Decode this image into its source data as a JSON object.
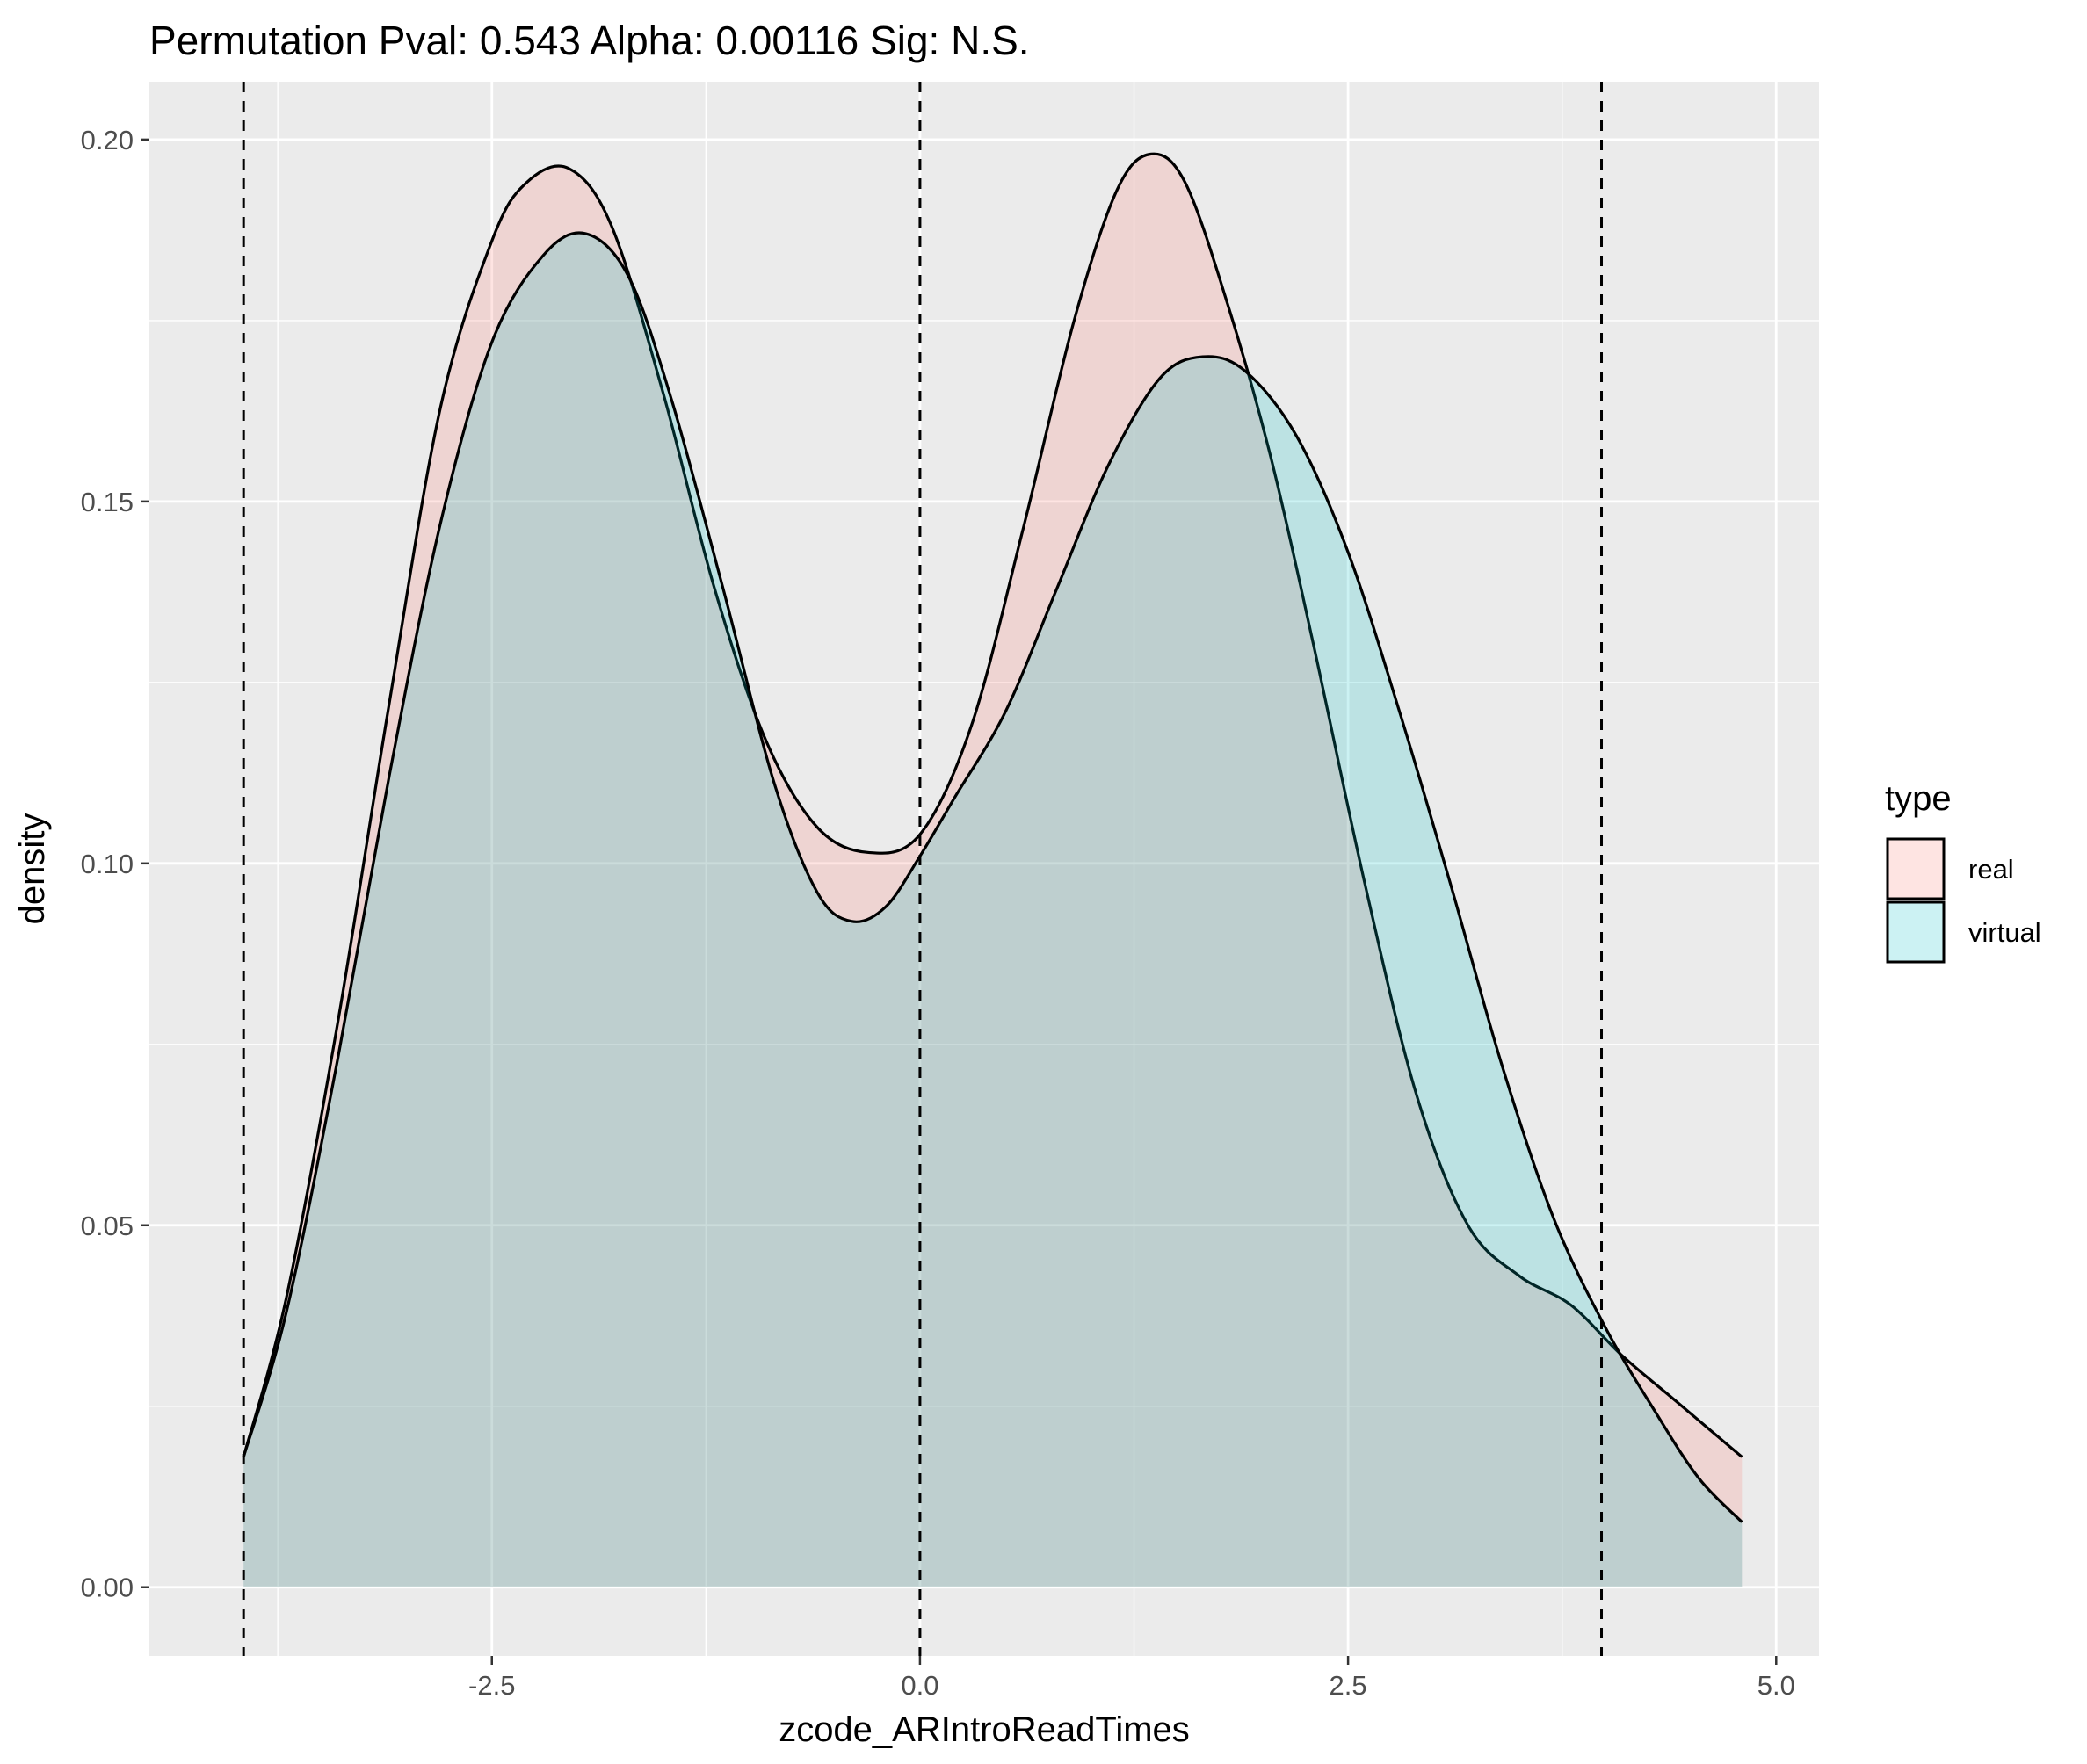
{
  "chart_data": {
    "type": "area",
    "title": "Permutation Pval: 0.543 Alpha: 0.00116 Sig: N.S.",
    "xlabel": "zcode_ARIntroReadTimes",
    "ylabel": "density",
    "xlim": [
      -4.5,
      5.25
    ],
    "ylim": [
      -0.0095,
      0.208
    ],
    "x_ticks": [
      -2.5,
      0.0,
      2.5,
      5.0
    ],
    "x_tick_labels": [
      "-2.5",
      "0.0",
      "2.5",
      "5.0"
    ],
    "y_ticks": [
      0.0,
      0.05,
      0.1,
      0.15,
      0.2
    ],
    "y_tick_labels": [
      "0.00",
      "0.05",
      "0.10",
      "0.15",
      "0.20"
    ],
    "grid": true,
    "legend": {
      "title": "type",
      "position": "right"
    },
    "vlines": [
      -3.95,
      0.0,
      3.98
    ],
    "series": [
      {
        "name": "real",
        "color": "#F8766D",
        "points": [
          [
            -3.95,
            0.018
          ],
          [
            -3.7,
            0.04
          ],
          [
            -3.4,
            0.078
          ],
          [
            -3.1,
            0.122
          ],
          [
            -2.8,
            0.163
          ],
          [
            -2.5,
            0.186
          ],
          [
            -2.3,
            0.194
          ],
          [
            -2.05,
            0.196
          ],
          [
            -1.8,
            0.188
          ],
          [
            -1.5,
            0.165
          ],
          [
            -1.2,
            0.138
          ],
          [
            -0.9,
            0.117
          ],
          [
            -0.6,
            0.105
          ],
          [
            -0.3,
            0.1015
          ],
          [
            0.0,
            0.104
          ],
          [
            0.3,
            0.119
          ],
          [
            0.6,
            0.146
          ],
          [
            0.9,
            0.175
          ],
          [
            1.15,
            0.193
          ],
          [
            1.35,
            0.198
          ],
          [
            1.55,
            0.194
          ],
          [
            1.8,
            0.177
          ],
          [
            2.05,
            0.156
          ],
          [
            2.3,
            0.13
          ],
          [
            2.6,
            0.097
          ],
          [
            2.9,
            0.068
          ],
          [
            3.2,
            0.05
          ],
          [
            3.5,
            0.043
          ],
          [
            3.8,
            0.039
          ],
          [
            4.1,
            0.032
          ],
          [
            4.4,
            0.026
          ],
          [
            4.6,
            0.022
          ],
          [
            4.8,
            0.018
          ]
        ]
      },
      {
        "name": "virtual",
        "color": "#00BFC4",
        "points": [
          [
            -3.95,
            0.018
          ],
          [
            -3.7,
            0.038
          ],
          [
            -3.4,
            0.073
          ],
          [
            -3.1,
            0.112
          ],
          [
            -2.8,
            0.147
          ],
          [
            -2.5,
            0.172
          ],
          [
            -2.2,
            0.184
          ],
          [
            -1.95,
            0.187
          ],
          [
            -1.7,
            0.181
          ],
          [
            -1.45,
            0.164
          ],
          [
            -1.15,
            0.138
          ],
          [
            -0.85,
            0.111
          ],
          [
            -0.6,
            0.096
          ],
          [
            -0.4,
            0.092
          ],
          [
            -0.2,
            0.094
          ],
          [
            0.0,
            0.101
          ],
          [
            0.2,
            0.109
          ],
          [
            0.5,
            0.121
          ],
          [
            0.8,
            0.138
          ],
          [
            1.1,
            0.155
          ],
          [
            1.4,
            0.167
          ],
          [
            1.65,
            0.17
          ],
          [
            1.9,
            0.168
          ],
          [
            2.2,
            0.159
          ],
          [
            2.5,
            0.143
          ],
          [
            2.8,
            0.121
          ],
          [
            3.1,
            0.097
          ],
          [
            3.4,
            0.072
          ],
          [
            3.7,
            0.051
          ],
          [
            4.0,
            0.036
          ],
          [
            4.3,
            0.024
          ],
          [
            4.55,
            0.015
          ],
          [
            4.8,
            0.009
          ]
        ]
      }
    ]
  }
}
